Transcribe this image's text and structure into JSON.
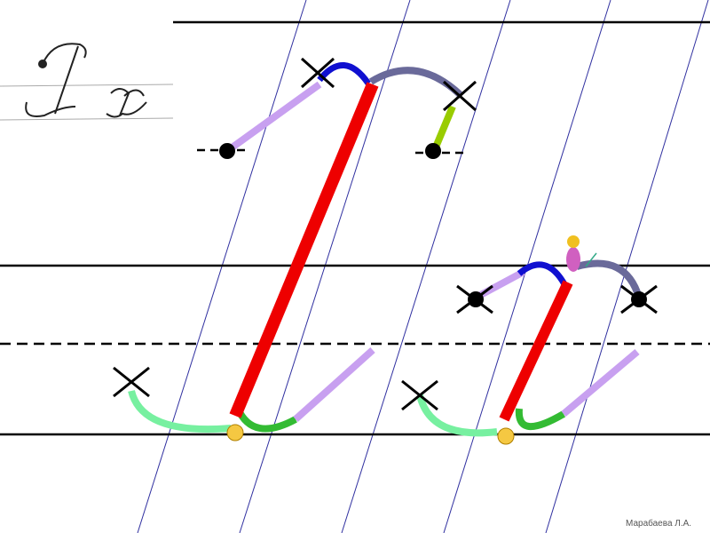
{
  "author": "Марабаева Л.А."
}
